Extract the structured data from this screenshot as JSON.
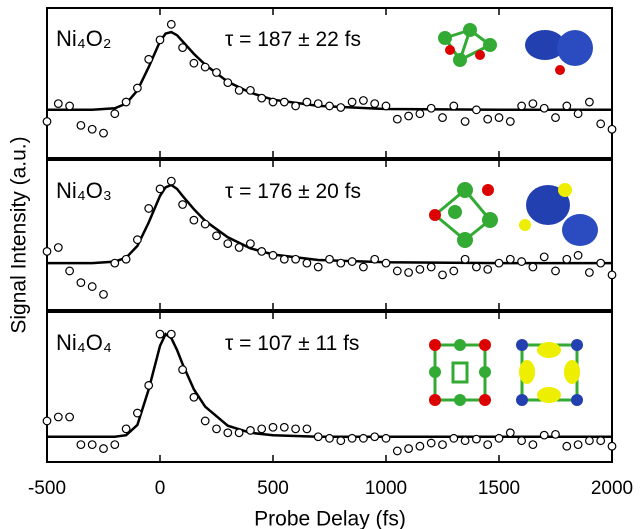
{
  "chart_data": {
    "type": "scatter",
    "xlabel": "Probe Delay (fs)",
    "ylabel": "Signal Intensity (a.u.)",
    "xlim": [
      -500,
      2000
    ],
    "xticks": [
      -500,
      0,
      500,
      1000,
      1500,
      2000
    ],
    "x": [
      -500,
      -450,
      -400,
      -350,
      -300,
      -250,
      -200,
      -150,
      -100,
      -50,
      0,
      50,
      100,
      150,
      200,
      250,
      300,
      350,
      400,
      450,
      500,
      550,
      600,
      650,
      700,
      750,
      800,
      850,
      900,
      950,
      1000,
      1050,
      1100,
      1150,
      1200,
      1250,
      1300,
      1350,
      1400,
      1450,
      1500,
      1550,
      1600,
      1650,
      1700,
      1750,
      1800,
      1850,
      1900,
      1950,
      2000
    ],
    "fit_x": [
      -500,
      -300,
      -200,
      -150,
      -100,
      -50,
      0,
      25,
      50,
      75,
      100,
      150,
      200,
      300,
      400,
      500,
      700,
      1000,
      1500,
      2000
    ],
    "panels": [
      {
        "label": "Ni₄O₂",
        "annotation": "τ = 187 ± 22 fs",
        "ylim": [
          -0.62,
          1.31
        ],
        "values": [
          -0.15,
          0.08,
          0.05,
          -0.2,
          -0.25,
          -0.3,
          -0.05,
          0.1,
          0.28,
          0.65,
          0.9,
          1.1,
          0.8,
          0.6,
          0.55,
          0.48,
          0.35,
          0.25,
          0.25,
          0.15,
          0.1,
          0.1,
          0.05,
          0.1,
          0.08,
          0.05,
          0.03,
          0.1,
          0.12,
          0.08,
          0.05,
          -0.12,
          -0.08,
          -0.05,
          0.02,
          -0.1,
          0.05,
          -0.15,
          0.0,
          -0.12,
          -0.1,
          -0.15,
          0.05,
          0.08,
          0.02,
          -0.1,
          0.05,
          -0.05,
          0.1,
          -0.18,
          -0.25
        ],
        "fit_values": [
          0,
          0,
          0.02,
          0.08,
          0.25,
          0.55,
          0.88,
          0.98,
          1.0,
          0.96,
          0.88,
          0.72,
          0.58,
          0.36,
          0.22,
          0.13,
          0.05,
          0.01,
          0,
          0
        ]
      },
      {
        "label": "Ni₄O₃",
        "annotation": "τ = 176 ± 20 fs",
        "ylim": [
          -0.6,
          1.32
        ],
        "values": [
          0.15,
          0.2,
          -0.1,
          -0.25,
          -0.3,
          -0.4,
          0.0,
          0.05,
          0.3,
          0.7,
          0.95,
          1.05,
          0.75,
          0.55,
          0.5,
          0.35,
          0.25,
          0.2,
          0.25,
          0.15,
          0.1,
          0.05,
          0.05,
          0.0,
          -0.05,
          0.05,
          0.0,
          0.02,
          -0.05,
          0.05,
          0.0,
          -0.1,
          -0.12,
          -0.08,
          -0.05,
          -0.15,
          -0.1,
          0.05,
          -0.05,
          -0.08,
          0.0,
          0.05,
          0.02,
          -0.05,
          0.08,
          -0.1,
          0.05,
          0.1,
          -0.12,
          0.0,
          -0.15
        ],
        "fit_values": [
          0,
          0,
          0.02,
          0.07,
          0.22,
          0.52,
          0.86,
          0.97,
          1.0,
          0.95,
          0.86,
          0.69,
          0.54,
          0.33,
          0.19,
          0.11,
          0.04,
          0.01,
          0,
          0
        ]
      },
      {
        "label": "Ni₄O₄",
        "annotation": "τ = 107 ± 11 fs",
        "ylim": [
          -0.32,
          1.58
        ],
        "values": [
          0.2,
          0.25,
          0.25,
          -0.1,
          -0.1,
          -0.15,
          -0.1,
          0.1,
          0.3,
          0.65,
          1.3,
          1.3,
          0.85,
          0.5,
          0.2,
          0.1,
          0.05,
          0.05,
          0.08,
          0.1,
          0.12,
          0.12,
          0.1,
          0.1,
          0.0,
          -0.02,
          -0.05,
          -0.02,
          -0.02,
          0.0,
          -0.02,
          -0.18,
          -0.15,
          -0.12,
          -0.08,
          -0.1,
          -0.02,
          -0.05,
          -0.03,
          -0.1,
          -0.02,
          0.05,
          -0.05,
          -0.1,
          0.02,
          0.03,
          -0.12,
          -0.1,
          -0.05,
          -0.05,
          -0.12
        ],
        "fit_values": [
          0,
          0,
          0,
          0.02,
          0.15,
          0.6,
          1.15,
          1.3,
          1.25,
          1.1,
          0.92,
          0.6,
          0.38,
          0.14,
          0.05,
          0.02,
          0,
          0,
          0,
          0
        ]
      }
    ],
    "marker_color": "#000000",
    "fit_color": "#000000"
  }
}
